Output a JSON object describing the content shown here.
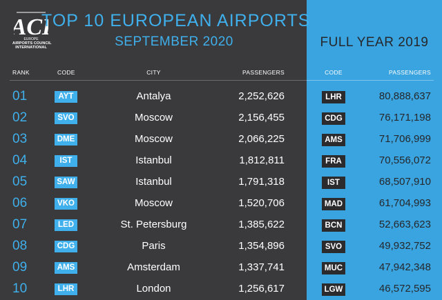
{
  "logo": {
    "mark": "ACI",
    "region": "EUROPE",
    "line1": "AIRPORTS COUNCIL",
    "line2": "INTERNATIONAL"
  },
  "title": "TOP 10 EUROPEAN AIRPORTS",
  "subtitle": "SEPTEMBER 2020",
  "full_year_title": "FULL YEAR  2019",
  "headers": {
    "rank": "RANK",
    "code": "CODE",
    "city": "CITY",
    "passengers": "PASSENGERS",
    "fy_code": "CODE",
    "fy_passengers": "PASSENGERS"
  },
  "colors": {
    "background": "#3a3a3c",
    "accent": "#3fb0ec",
    "panel": "#3aa4e0"
  },
  "rows": [
    {
      "rank": "01",
      "code": "AYT",
      "city": "Antalya",
      "passengers": "2,252,626",
      "fy_code": "LHR",
      "fy_passengers": "80,888,637"
    },
    {
      "rank": "02",
      "code": "SVO",
      "city": "Moscow",
      "passengers": "2,156,455",
      "fy_code": "CDG",
      "fy_passengers": "76,171,198"
    },
    {
      "rank": "03",
      "code": "DME",
      "city": "Moscow",
      "passengers": "2,066,225",
      "fy_code": "AMS",
      "fy_passengers": "71,706,999"
    },
    {
      "rank": "04",
      "code": "IST",
      "city": "Istanbul",
      "passengers": "1,812,811",
      "fy_code": "FRA",
      "fy_passengers": "70,556,072"
    },
    {
      "rank": "05",
      "code": "SAW",
      "city": "Istanbul",
      "passengers": "1,791,318",
      "fy_code": "IST",
      "fy_passengers": "68,507,910"
    },
    {
      "rank": "06",
      "code": "VKO",
      "city": "Moscow",
      "passengers": "1,520,706",
      "fy_code": "MAD",
      "fy_passengers": "61,704,993"
    },
    {
      "rank": "07",
      "code": "LED",
      "city": "St. Petersburg",
      "passengers": "1,385,622",
      "fy_code": "BCN",
      "fy_passengers": "52,663,623"
    },
    {
      "rank": "08",
      "code": "CDG",
      "city": "Paris",
      "passengers": "1,354,896",
      "fy_code": "SVO",
      "fy_passengers": "49,932,752"
    },
    {
      "rank": "09",
      "code": "AMS",
      "city": "Amsterdam",
      "passengers": "1,337,741",
      "fy_code": "MUC",
      "fy_passengers": "47,942,348"
    },
    {
      "rank": "10",
      "code": "LHR",
      "city": "London",
      "passengers": "1,256,617",
      "fy_code": "LGW",
      "fy_passengers": "46,572,595"
    }
  ]
}
